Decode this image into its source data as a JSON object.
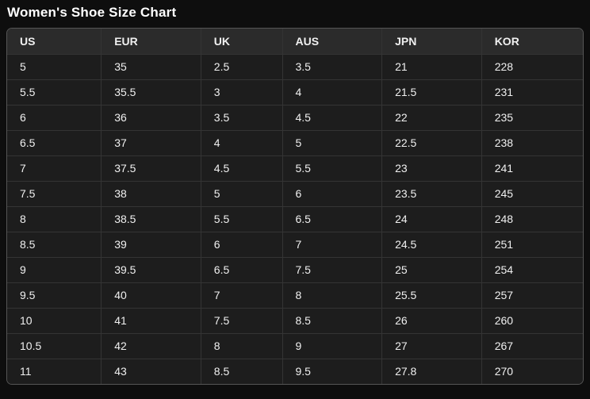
{
  "title": "Women's Shoe Size Chart",
  "colors": {
    "page_bg": "#0e0e0e",
    "header_bg": "#2b2b2b",
    "cell_bg": "#1d1d1d",
    "grid_border": "#343434",
    "outer_border": "#555555",
    "text": "#f0f0f0",
    "title_text": "#ffffff"
  },
  "chart_data": {
    "type": "table",
    "title": "Women's Shoe Size Chart",
    "columns": [
      "US",
      "EUR",
      "UK",
      "AUS",
      "JPN",
      "KOR"
    ],
    "rows": [
      [
        "5",
        "35",
        "2.5",
        "3.5",
        "21",
        "228"
      ],
      [
        "5.5",
        "35.5",
        "3",
        "4",
        "21.5",
        "231"
      ],
      [
        "6",
        "36",
        "3.5",
        "4.5",
        "22",
        "235"
      ],
      [
        "6.5",
        "37",
        "4",
        "5",
        "22.5",
        "238"
      ],
      [
        "7",
        "37.5",
        "4.5",
        "5.5",
        "23",
        "241"
      ],
      [
        "7.5",
        "38",
        "5",
        "6",
        "23.5",
        "245"
      ],
      [
        "8",
        "38.5",
        "5.5",
        "6.5",
        "24",
        "248"
      ],
      [
        "8.5",
        "39",
        "6",
        "7",
        "24.5",
        "251"
      ],
      [
        "9",
        "39.5",
        "6.5",
        "7.5",
        "25",
        "254"
      ],
      [
        "9.5",
        "40",
        "7",
        "8",
        "25.5",
        "257"
      ],
      [
        "10",
        "41",
        "7.5",
        "8.5",
        "26",
        "260"
      ],
      [
        "10.5",
        "42",
        "8",
        "9",
        "27",
        "267"
      ],
      [
        "11",
        "43",
        "8.5",
        "9.5",
        "27.8",
        "270"
      ]
    ],
    "layout": {
      "header_row": true,
      "grid": true,
      "legend": "none"
    }
  }
}
